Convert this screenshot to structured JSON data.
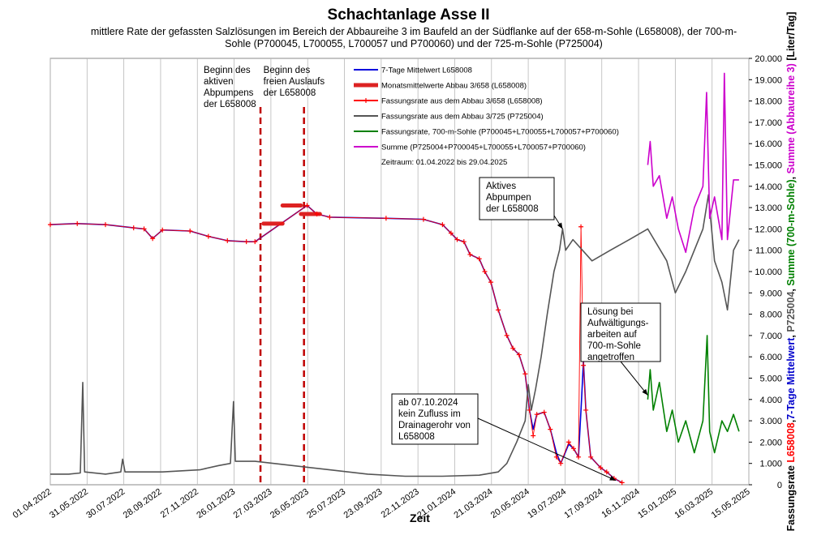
{
  "chart_data": {
    "type": "line",
    "title": "Schachtanlage Asse II",
    "subtitle": "mittlere Rate der gefassten Salzlösungen im Bereich der Abbaureihe 3 im Baufeld an der Südflanke auf der 658-m-Sohle (L658008), der 700-m-Sohle (P700045, L700055, L700057 und P700060) und der 725-m-Sohle (P725004)",
    "xlabel": "Zeit",
    "ylabel_parts": [
      {
        "text": "Fassungsrate ",
        "color": "#000000"
      },
      {
        "text": "L658008",
        "color": "#ff0000"
      },
      {
        "text": ",",
        "color": "#000000"
      },
      {
        "text": "7-Tage Mittelwert",
        "color": "#0000cc"
      },
      {
        "text": ", ",
        "color": "#000000"
      },
      {
        "text": "P725004",
        "color": "#555555"
      },
      {
        "text": ", ",
        "color": "#000000"
      },
      {
        "text": "Summe (700-m-Sohle)",
        "color": "#008000"
      },
      {
        "text": ", ",
        "color": "#000000"
      },
      {
        "text": "Summe (Abbaureihe 3)",
        "color": "#cc00cc"
      },
      {
        "text": " [Liter/Tag]",
        "color": "#000000"
      }
    ],
    "x_ticks": [
      "01.04.2022",
      "31.05.2022",
      "30.07.2022",
      "28.09.2022",
      "27.11.2022",
      "26.01.2023",
      "27.03.2023",
      "26.05.2023",
      "25.07.2023",
      "23.09.2023",
      "22.11.2023",
      "21.01.2024",
      "21.03.2024",
      "20.05.2024",
      "19.07.2024",
      "17.09.2024",
      "16.11.2024",
      "15.01.2025",
      "16.03.2025",
      "15.05.2025"
    ],
    "xlim": [
      "2022-04-01",
      "2025-05-15"
    ],
    "ylim": [
      0,
      20000
    ],
    "y_ticks": [
      "0",
      "1.000",
      "2.000",
      "3.000",
      "4.000",
      "5.000",
      "6.000",
      "7.000",
      "8.000",
      "9.000",
      "10.000",
      "11.000",
      "12.000",
      "13.000",
      "14.000",
      "15.000",
      "16.000",
      "17.000",
      "18.000",
      "19.000",
      "20.000"
    ],
    "grid": "vertical",
    "legend_position": "top-center",
    "period_label": "Zeitraum: 01.04.2022 bis  29.04.2025",
    "series": [
      {
        "name": "7-Tage Mittelwert L658008",
        "color": "#0000dd",
        "style": "line",
        "points": [
          [
            "2022-04-01",
            12200
          ],
          [
            "2022-05-15",
            12250
          ],
          [
            "2022-06-30",
            12200
          ],
          [
            "2022-08-15",
            12050
          ],
          [
            "2022-09-01",
            12000
          ],
          [
            "2022-09-15",
            11550
          ],
          [
            "2022-10-01",
            11950
          ],
          [
            "2022-11-15",
            11900
          ],
          [
            "2022-12-15",
            11650
          ],
          [
            "2023-01-15",
            11450
          ],
          [
            "2023-02-15",
            11400
          ],
          [
            "2023-03-01",
            11400
          ],
          [
            "2023-05-25",
            13100
          ],
          [
            "2023-06-10",
            12700
          ],
          [
            "2023-07-01",
            12550
          ],
          [
            "2023-10-01",
            12500
          ],
          [
            "2023-12-01",
            12450
          ],
          [
            "2024-01-01",
            12200
          ],
          [
            "2024-01-15",
            11800
          ],
          [
            "2024-01-25",
            11500
          ],
          [
            "2024-02-05",
            11400
          ],
          [
            "2024-02-15",
            10800
          ],
          [
            "2024-03-01",
            10600
          ],
          [
            "2024-03-10",
            10000
          ],
          [
            "2024-03-20",
            9500
          ],
          [
            "2024-04-01",
            8200
          ],
          [
            "2024-04-15",
            7000
          ],
          [
            "2024-04-25",
            6400
          ],
          [
            "2024-05-05",
            6100
          ],
          [
            "2024-05-15",
            5200
          ],
          [
            "2024-05-22",
            3500
          ],
          [
            "2024-05-28",
            2600
          ],
          [
            "2024-06-03",
            3300
          ],
          [
            "2024-06-15",
            3400
          ],
          [
            "2024-06-25",
            2600
          ],
          [
            "2024-07-05",
            1500
          ],
          [
            "2024-07-12",
            1000
          ],
          [
            "2024-07-25",
            1900
          ],
          [
            "2024-08-02",
            1700
          ],
          [
            "2024-08-10",
            1300
          ],
          [
            "2024-08-15",
            4000
          ],
          [
            "2024-08-18",
            5800
          ],
          [
            "2024-08-22",
            3500
          ],
          [
            "2024-08-30",
            1300
          ],
          [
            "2024-09-15",
            800
          ],
          [
            "2024-09-25",
            600
          ],
          [
            "2024-10-07",
            300
          ],
          [
            "2024-10-20",
            100
          ]
        ]
      },
      {
        "name": "Monatsmittelwerte Abbau 3/658 (L658008)",
        "color": "#dd2222",
        "style": "steps",
        "segments": [
          [
            "2023-03-15",
            "2023-04-15",
            12250
          ],
          [
            "2023-04-15",
            "2023-05-15",
            13100
          ],
          [
            "2023-05-15",
            "2023-06-15",
            12700
          ]
        ]
      },
      {
        "name": "Fassungsrate aus dem Abbau 3/658 (L658008)",
        "color": "#ff0000",
        "style": "markers",
        "points": [
          [
            "2022-04-01",
            12200
          ],
          [
            "2022-05-15",
            12250
          ],
          [
            "2022-06-30",
            12200
          ],
          [
            "2022-08-15",
            12050
          ],
          [
            "2022-09-01",
            12000
          ],
          [
            "2022-09-15",
            11550
          ],
          [
            "2022-10-01",
            11950
          ],
          [
            "2022-11-15",
            11900
          ],
          [
            "2022-12-15",
            11650
          ],
          [
            "2023-01-15",
            11450
          ],
          [
            "2023-02-15",
            11400
          ],
          [
            "2023-03-01",
            11400
          ],
          [
            "2023-05-25",
            13100
          ],
          [
            "2023-06-10",
            12700
          ],
          [
            "2023-07-01",
            12550
          ],
          [
            "2023-10-01",
            12500
          ],
          [
            "2023-12-01",
            12450
          ],
          [
            "2024-01-01",
            12200
          ],
          [
            "2024-01-15",
            11800
          ],
          [
            "2024-01-25",
            11500
          ],
          [
            "2024-02-05",
            11400
          ],
          [
            "2024-02-15",
            10800
          ],
          [
            "2024-03-01",
            10600
          ],
          [
            "2024-03-10",
            10000
          ],
          [
            "2024-03-20",
            9500
          ],
          [
            "2024-04-01",
            8200
          ],
          [
            "2024-04-15",
            7000
          ],
          [
            "2024-04-25",
            6400
          ],
          [
            "2024-05-05",
            6100
          ],
          [
            "2024-05-15",
            5200
          ],
          [
            "2024-05-22",
            3500
          ],
          [
            "2024-05-28",
            2300
          ],
          [
            "2024-06-03",
            3300
          ],
          [
            "2024-06-15",
            3400
          ],
          [
            "2024-06-25",
            2600
          ],
          [
            "2024-07-05",
            1300
          ],
          [
            "2024-07-12",
            1000
          ],
          [
            "2024-07-25",
            2000
          ],
          [
            "2024-08-02",
            1700
          ],
          [
            "2024-08-10",
            1300
          ],
          [
            "2024-08-14",
            12100
          ],
          [
            "2024-08-18",
            5600
          ],
          [
            "2024-08-22",
            3500
          ],
          [
            "2024-08-30",
            1300
          ],
          [
            "2024-09-15",
            800
          ],
          [
            "2024-09-25",
            600
          ],
          [
            "2024-10-07",
            300
          ],
          [
            "2024-10-20",
            100
          ]
        ]
      },
      {
        "name": "Fassungsrate aus dem Abbau 3/725 (P725004)",
        "color": "#555555",
        "style": "line",
        "points": [
          [
            "2022-04-01",
            500
          ],
          [
            "2022-05-01",
            500
          ],
          [
            "2022-05-20",
            550
          ],
          [
            "2022-05-24",
            4800
          ],
          [
            "2022-05-27",
            600
          ],
          [
            "2022-06-30",
            500
          ],
          [
            "2022-07-25",
            600
          ],
          [
            "2022-07-28",
            1200
          ],
          [
            "2022-08-01",
            600
          ],
          [
            "2022-10-01",
            600
          ],
          [
            "2022-12-01",
            700
          ],
          [
            "2023-01-01",
            900
          ],
          [
            "2023-01-20",
            1000
          ],
          [
            "2023-01-25",
            3900
          ],
          [
            "2023-01-28",
            1100
          ],
          [
            "2023-03-01",
            1100
          ],
          [
            "2023-05-01",
            900
          ],
          [
            "2023-07-01",
            700
          ],
          [
            "2023-09-01",
            500
          ],
          [
            "2023-11-01",
            400
          ],
          [
            "2024-01-01",
            400
          ],
          [
            "2024-03-01",
            450
          ],
          [
            "2024-04-01",
            600
          ],
          [
            "2024-04-15",
            1000
          ],
          [
            "2024-05-01",
            2000
          ],
          [
            "2024-05-15",
            3000
          ],
          [
            "2024-05-20",
            4700
          ],
          [
            "2024-05-25",
            3500
          ],
          [
            "2024-06-01",
            4500
          ],
          [
            "2024-06-10",
            6000
          ],
          [
            "2024-06-20",
            8000
          ],
          [
            "2024-07-01",
            10000
          ],
          [
            "2024-07-10",
            11000
          ],
          [
            "2024-07-15",
            12000
          ],
          [
            "2024-07-20",
            11000
          ],
          [
            "2024-08-01",
            11500
          ],
          [
            "2024-09-01",
            10500
          ],
          [
            "2024-10-01",
            11000
          ],
          [
            "2024-11-01",
            11500
          ],
          [
            "2024-12-01",
            12000
          ],
          [
            "2025-01-01",
            10500
          ],
          [
            "2025-01-15",
            9000
          ],
          [
            "2025-02-01",
            10000
          ],
          [
            "2025-02-15",
            11000
          ],
          [
            "2025-03-01",
            12000
          ],
          [
            "2025-03-10",
            13600
          ],
          [
            "2025-03-20",
            10500
          ],
          [
            "2025-04-01",
            9500
          ],
          [
            "2025-04-10",
            8200
          ],
          [
            "2025-04-20",
            11000
          ],
          [
            "2025-04-29",
            11500
          ]
        ]
      },
      {
        "name": "Fassungsrate, 700-m-Sohle (P700045+L700055+L700057+P700060)",
        "color": "#008000",
        "style": "line",
        "points": [
          [
            "2024-12-01",
            4000
          ],
          [
            "2024-12-05",
            5400
          ],
          [
            "2024-12-10",
            3500
          ],
          [
            "2024-12-20",
            4800
          ],
          [
            "2025-01-01",
            2500
          ],
          [
            "2025-01-10",
            3500
          ],
          [
            "2025-01-20",
            2000
          ],
          [
            "2025-02-01",
            3000
          ],
          [
            "2025-02-15",
            1500
          ],
          [
            "2025-03-01",
            3000
          ],
          [
            "2025-03-08",
            7000
          ],
          [
            "2025-03-12",
            2500
          ],
          [
            "2025-03-20",
            1500
          ],
          [
            "2025-04-01",
            3000
          ],
          [
            "2025-04-10",
            2500
          ],
          [
            "2025-04-20",
            3300
          ],
          [
            "2025-04-29",
            2500
          ]
        ]
      },
      {
        "name": "Summe (P725004+P700045+L700055+L700057+P700060)",
        "color": "#cc00cc",
        "style": "line",
        "points": [
          [
            "2024-12-01",
            15000
          ],
          [
            "2024-12-05",
            16100
          ],
          [
            "2024-12-10",
            14000
          ],
          [
            "2024-12-20",
            14500
          ],
          [
            "2025-01-01",
            12500
          ],
          [
            "2025-01-10",
            13500
          ],
          [
            "2025-01-20",
            12000
          ],
          [
            "2025-02-01",
            10900
          ],
          [
            "2025-02-15",
            13000
          ],
          [
            "2025-03-01",
            14000
          ],
          [
            "2025-03-07",
            18400
          ],
          [
            "2025-03-12",
            12500
          ],
          [
            "2025-03-20",
            13500
          ],
          [
            "2025-04-01",
            11500
          ],
          [
            "2025-04-05",
            19300
          ],
          [
            "2025-04-10",
            11500
          ],
          [
            "2025-04-20",
            14300
          ],
          [
            "2025-04-29",
            14300
          ]
        ]
      }
    ],
    "events": [
      {
        "date": "2023-03-10",
        "label_lines": [
          "Beginn des",
          "aktiven",
          "Abpumpens",
          "der L658008"
        ]
      },
      {
        "date": "2023-05-20",
        "label_lines": [
          "Beginn des",
          "freien Auslaufs",
          "der L658008"
        ]
      }
    ],
    "annotations": [
      {
        "lines": [
          "Aktives",
          "Abpumpen",
          "der L658008"
        ],
        "target": [
          "2024-07-15",
          12000
        ]
      },
      {
        "lines": [
          "Lösung bei",
          "Aufwältigungs-",
          "arbeiten auf",
          "700-m-Sohle",
          "angetroffen"
        ],
        "target": [
          "2024-12-01",
          4200
        ]
      },
      {
        "lines": [
          "ab 07.10.2024",
          "kein Zufluss im",
          "Drainagerohr von",
          "L658008"
        ],
        "target": [
          "2024-10-10",
          200
        ]
      }
    ]
  }
}
